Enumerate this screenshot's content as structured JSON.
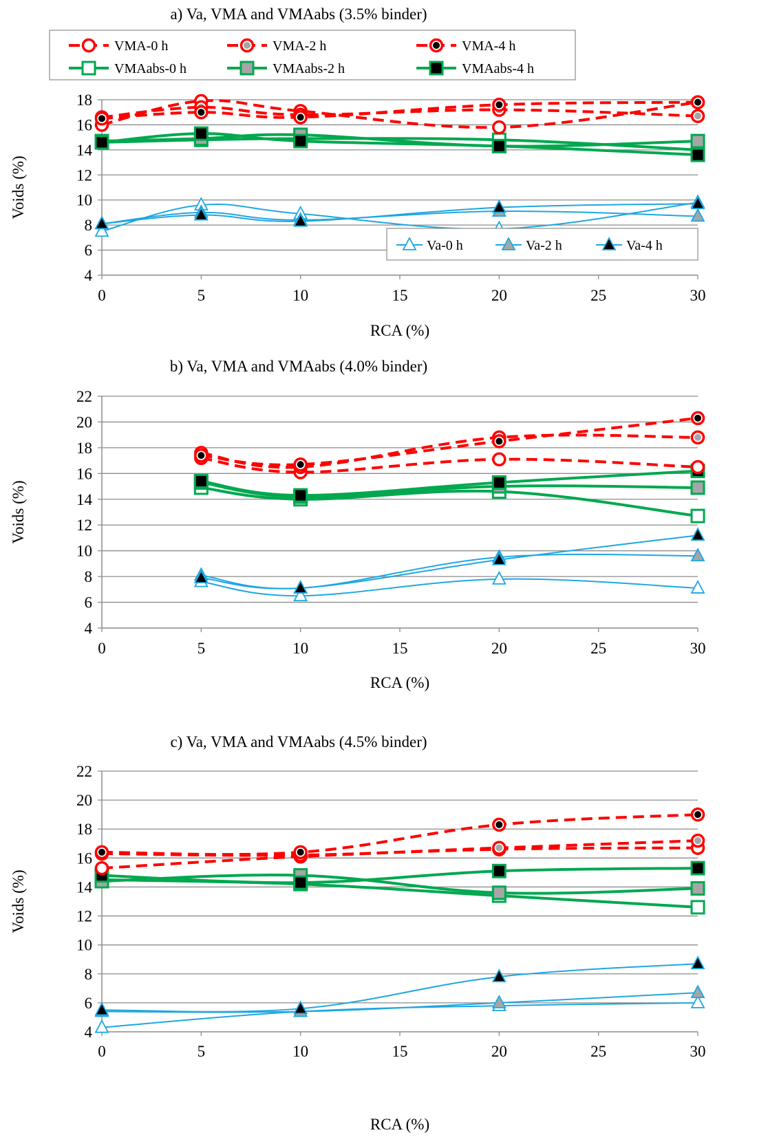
{
  "colors": {
    "red": "#ff0000",
    "green": "#00a84f",
    "blue": "#1ea7e1",
    "grid": "#8c8c8c",
    "marker_gray": "#a6a6a6",
    "marker_black": "#000000"
  },
  "legend_top": [
    "VMA-0 h",
    "VMA-2 h",
    "VMA-4 h",
    "VMAabs-0 h",
    "VMAabs-2 h",
    "VMAabs-4 h"
  ],
  "legend_bottom": [
    "Va-0 h",
    "Va-2 h",
    "Va-4 h"
  ],
  "chart_data": [
    {
      "type": "line",
      "title": "a) Va, VMA and VMAabs (3.5% binder)",
      "xlabel": "RCA (%)",
      "ylabel": "Voids (%)",
      "xlim": [
        0,
        30
      ],
      "ylim": [
        4,
        18
      ],
      "xticks": [
        "0",
        "5",
        "10",
        "15",
        "20",
        "25",
        "30"
      ],
      "yticks": [
        "4",
        "6",
        "8",
        "10",
        "12",
        "14",
        "16",
        "18"
      ],
      "grid": "horizontal",
      "legend": "top-left and bottom-right",
      "x": [
        0,
        5,
        10,
        20,
        30
      ],
      "series": [
        {
          "name": "VMA-0 h",
          "values": [
            16.0,
            17.9,
            17.1,
            15.8,
            17.8
          ]
        },
        {
          "name": "VMA-2 h",
          "values": [
            16.6,
            17.4,
            16.8,
            17.2,
            16.7
          ]
        },
        {
          "name": "VMA-4 h",
          "values": [
            16.5,
            17.0,
            16.6,
            17.6,
            17.8
          ]
        },
        {
          "name": "VMAabs-0 h",
          "values": [
            14.6,
            14.8,
            14.9,
            14.8,
            14.0
          ]
        },
        {
          "name": "VMAabs-2 h",
          "values": [
            14.7,
            14.9,
            15.2,
            14.3,
            14.7
          ]
        },
        {
          "name": "VMAabs-4 h",
          "values": [
            14.6,
            15.3,
            14.7,
            14.3,
            13.6
          ]
        },
        {
          "name": "Va-0 h",
          "values": [
            7.5,
            9.6,
            8.9,
            7.7,
            9.8
          ]
        },
        {
          "name": "Va-2 h",
          "values": [
            8.1,
            9.0,
            8.4,
            9.1,
            8.7
          ]
        },
        {
          "name": "Va-4 h",
          "values": [
            8.1,
            8.8,
            8.3,
            9.4,
            9.7
          ]
        }
      ]
    },
    {
      "type": "line",
      "title": "b) Va, VMA and VMAabs (4.0% binder)",
      "xlabel": "RCA (%)",
      "ylabel": "Voids (%)",
      "xlim": [
        0,
        30
      ],
      "ylim": [
        4,
        22
      ],
      "xticks": [
        "0",
        "5",
        "10",
        "15",
        "20",
        "25",
        "30"
      ],
      "yticks": [
        "4",
        "6",
        "8",
        "10",
        "12",
        "14",
        "16",
        "18",
        "20",
        "22"
      ],
      "grid": "horizontal",
      "x": [
        5,
        10,
        20,
        30
      ],
      "series": [
        {
          "name": "VMA-0 h",
          "values": [
            17.2,
            16.1,
            17.1,
            16.5
          ]
        },
        {
          "name": "VMA-2 h",
          "values": [
            17.6,
            16.5,
            18.8,
            18.8
          ]
        },
        {
          "name": "VMA-4 h",
          "values": [
            17.4,
            16.7,
            18.5,
            20.3
          ]
        },
        {
          "name": "VMAabs-0 h",
          "values": [
            14.9,
            14.0,
            14.6,
            12.7
          ]
        },
        {
          "name": "VMAabs-2 h",
          "values": [
            15.3,
            14.2,
            15.0,
            14.9
          ]
        },
        {
          "name": "VMAabs-4 h",
          "values": [
            15.4,
            14.3,
            15.3,
            16.2
          ]
        },
        {
          "name": "Va-0 h",
          "values": [
            7.6,
            6.5,
            7.8,
            7.1
          ]
        },
        {
          "name": "Va-2 h",
          "values": [
            8.1,
            7.1,
            9.5,
            9.6
          ]
        },
        {
          "name": "Va-4 h",
          "values": [
            7.9,
            7.1,
            9.3,
            11.2
          ]
        }
      ]
    },
    {
      "type": "line",
      "title": "c) Va, VMA and VMAabs (4.5% binder)",
      "xlabel": "RCA (%)",
      "ylabel": "Voids (%)",
      "xlim": [
        0,
        30
      ],
      "ylim": [
        4,
        22
      ],
      "xticks": [
        "0",
        "5",
        "10",
        "15",
        "20",
        "25",
        "30"
      ],
      "yticks": [
        "4",
        "6",
        "8",
        "10",
        "12",
        "14",
        "16",
        "18",
        "20",
        "22"
      ],
      "grid": "horizontal",
      "x": [
        0,
        10,
        20,
        30
      ],
      "series": [
        {
          "name": "VMA-0 h",
          "values": [
            15.3,
            16.1,
            16.6,
            16.7
          ]
        },
        {
          "name": "VMA-2 h",
          "values": [
            16.3,
            16.2,
            16.7,
            17.2
          ]
        },
        {
          "name": "VMA-4 h",
          "values": [
            16.4,
            16.4,
            18.3,
            19.0
          ]
        },
        {
          "name": "VMAabs-0 h",
          "values": [
            14.5,
            14.2,
            13.4,
            12.6
          ]
        },
        {
          "name": "VMAabs-2 h",
          "values": [
            14.4,
            14.8,
            13.6,
            13.9
          ]
        },
        {
          "name": "VMAabs-4 h",
          "values": [
            14.8,
            14.3,
            15.1,
            15.3
          ]
        },
        {
          "name": "Va-0 h",
          "values": [
            4.3,
            5.4,
            5.8,
            6.0
          ]
        },
        {
          "name": "Va-2 h",
          "values": [
            5.4,
            5.4,
            6.0,
            6.7
          ]
        },
        {
          "name": "Va-4 h",
          "values": [
            5.5,
            5.6,
            7.8,
            8.7
          ]
        }
      ]
    }
  ]
}
